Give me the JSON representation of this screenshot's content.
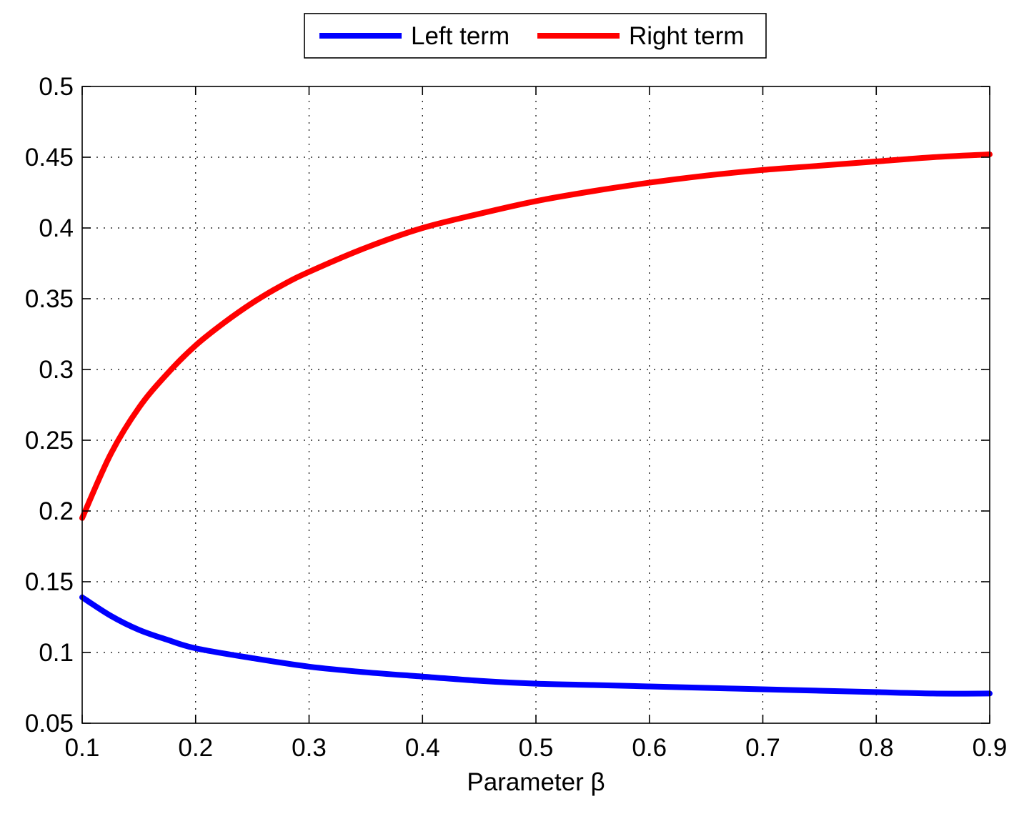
{
  "chart_data": {
    "type": "line",
    "title": "",
    "xlabel": "Parameter β",
    "ylabel": "",
    "xlim": [
      0.1,
      0.9
    ],
    "ylim": [
      0.05,
      0.5
    ],
    "xticks": [
      0.1,
      0.2,
      0.3,
      0.4,
      0.5,
      0.6,
      0.7,
      0.8,
      0.9
    ],
    "xtick_labels": [
      "0.1",
      "0.2",
      "0.3",
      "0.4",
      "0.5",
      "0.6",
      "0.7",
      "0.8",
      "0.9"
    ],
    "yticks": [
      0.05,
      0.1,
      0.15,
      0.2,
      0.25,
      0.3,
      0.35,
      0.4,
      0.45,
      0.5
    ],
    "ytick_labels": [
      "0.05",
      "0.1",
      "0.15",
      "0.2",
      "0.25",
      "0.3",
      "0.35",
      "0.4",
      "0.45",
      "0.5"
    ],
    "grid": true,
    "legend_position": "top-center",
    "series": [
      {
        "name": "Left term",
        "color": "#0000ff",
        "x": [
          0.1,
          0.125,
          0.15,
          0.175,
          0.2,
          0.25,
          0.3,
          0.35,
          0.4,
          0.45,
          0.5,
          0.55,
          0.6,
          0.65,
          0.7,
          0.75,
          0.8,
          0.85,
          0.9
        ],
        "y": [
          0.139,
          0.126,
          0.116,
          0.109,
          0.103,
          0.096,
          0.09,
          0.086,
          0.083,
          0.08,
          0.078,
          0.077,
          0.076,
          0.075,
          0.074,
          0.073,
          0.072,
          0.071,
          0.071
        ]
      },
      {
        "name": "Right term",
        "color": "#ff0000",
        "x": [
          0.1,
          0.125,
          0.15,
          0.175,
          0.2,
          0.225,
          0.25,
          0.275,
          0.3,
          0.35,
          0.4,
          0.45,
          0.5,
          0.55,
          0.6,
          0.65,
          0.7,
          0.75,
          0.8,
          0.85,
          0.9
        ],
        "y": [
          0.195,
          0.24,
          0.273,
          0.297,
          0.317,
          0.333,
          0.347,
          0.359,
          0.369,
          0.386,
          0.4,
          0.41,
          0.419,
          0.426,
          0.432,
          0.437,
          0.441,
          0.444,
          0.447,
          0.45,
          0.452
        ]
      }
    ]
  }
}
